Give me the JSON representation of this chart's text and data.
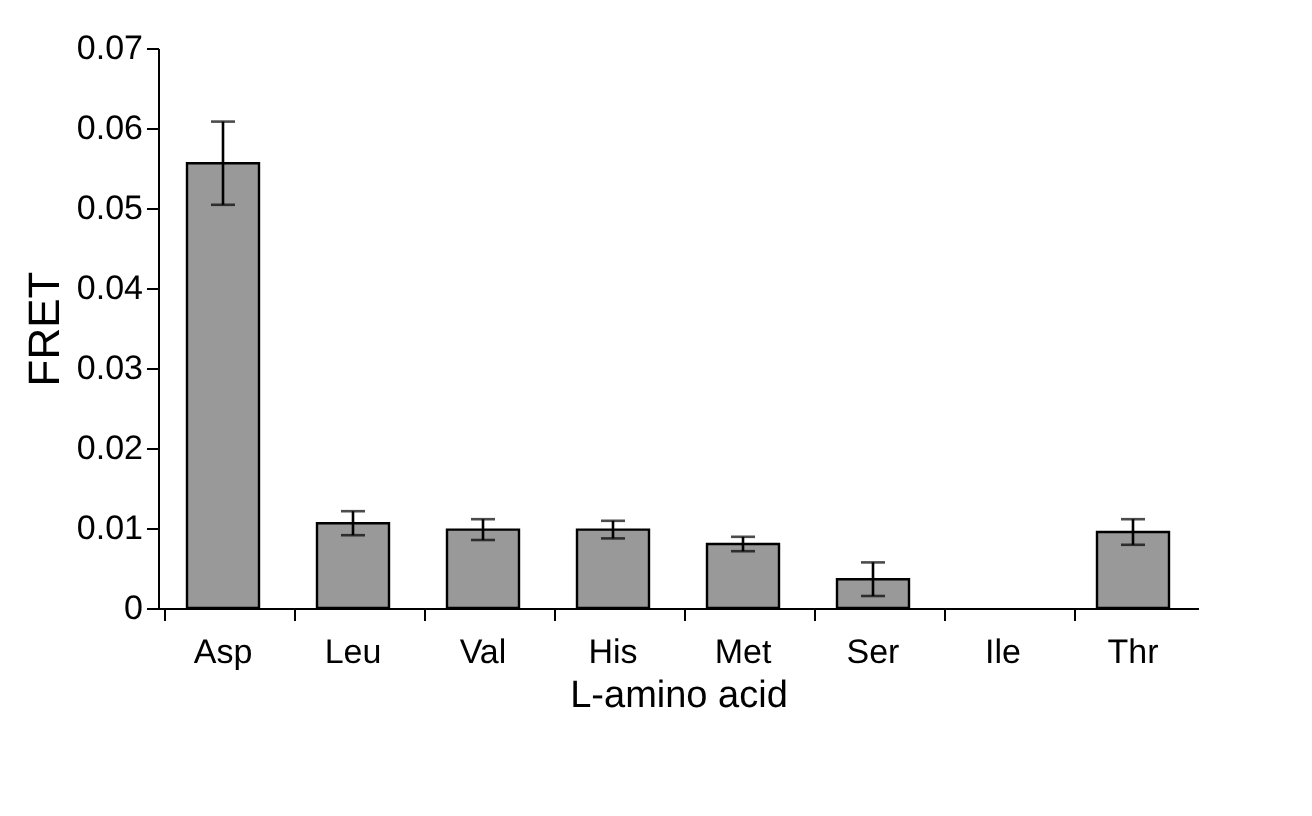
{
  "chart_data": {
    "type": "bar",
    "xlabel": "L-amino acid",
    "ylabel": "FRET",
    "categories": [
      "Asp",
      "Leu",
      "Val",
      "His",
      "Met",
      "Ser",
      "Ile",
      "Thr"
    ],
    "values": [
      0.0556,
      0.0106,
      0.0098,
      0.0098,
      0.008,
      0.0036,
      0,
      0.0095
    ],
    "errors": [
      0.0052,
      0.0015,
      0.0013,
      0.0011,
      0.0009,
      0.0021,
      null,
      0.0016
    ],
    "color": "#999999",
    "ylim": [
      0,
      0.07
    ],
    "yticks": [
      0,
      0.01,
      0.02,
      0.03,
      0.04,
      0.05,
      0.06,
      0.07
    ],
    "grid": false
  }
}
